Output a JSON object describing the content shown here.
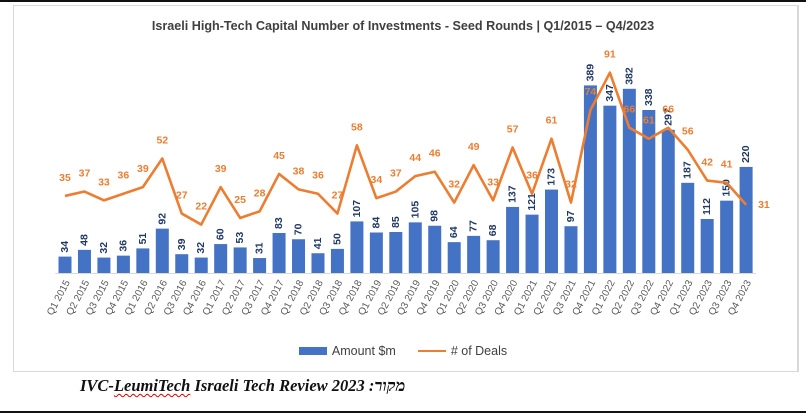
{
  "chart_data": {
    "type": "bar",
    "title": "Israeli High-Tech Capital Number of Investments - Seed Rounds | Q1/2015 – Q4/2023",
    "xlabel": "",
    "ylabel": "",
    "grid": false,
    "legend_position": "bottom",
    "categories": [
      "Q1 2015",
      "Q2 2015",
      "Q3 2015",
      "Q4 2015",
      "Q1 2016",
      "Q2 2016",
      "Q3 2016",
      "Q4 2016",
      "Q1 2017",
      "Q2 2017",
      "Q3 2017",
      "Q4 2017",
      "Q1 2018",
      "Q2 2018",
      "Q3 2018",
      "Q4 2018",
      "Q1 2019",
      "Q2 2019",
      "Q3 2019",
      "Q4 2019",
      "Q1 2020",
      "Q2 2020",
      "Q3 2020",
      "Q4 2020",
      "Q1 2021",
      "Q2 2021",
      "Q3 2021",
      "Q4 2021",
      "Q1 2022",
      "Q2 2022",
      "Q3 2022",
      "Q4 2022",
      "Q1 2023",
      "Q2 2023",
      "Q3 2023",
      "Q4 2023"
    ],
    "series": [
      {
        "name": "Amount $m",
        "type": "bar",
        "color": "#4472C4",
        "label_color": "#203864",
        "values": [
          34,
          48,
          32,
          36,
          51,
          92,
          39,
          32,
          60,
          53,
          31,
          83,
          70,
          41,
          50,
          107,
          84,
          85,
          105,
          98,
          64,
          77,
          68,
          137,
          121,
          173,
          97,
          389,
          347,
          382,
          338,
          297,
          187,
          112,
          150,
          220
        ]
      },
      {
        "name": "# of Deals",
        "type": "line",
        "color": "#ED7D31",
        "label_color": "#ED7D31",
        "values": [
          35,
          37,
          33,
          36,
          39,
          52,
          27,
          22,
          39,
          25,
          28,
          45,
          38,
          36,
          27,
          58,
          34,
          37,
          44,
          46,
          32,
          49,
          33,
          57,
          36,
          61,
          32,
          74,
          91,
          66,
          61,
          66,
          56,
          42,
          41,
          31
        ]
      }
    ],
    "ylim_amount": [
      0,
      450
    ],
    "ylim_deals": [
      0,
      124
    ]
  },
  "legend": {
    "amount_label": "Amount $m",
    "deals_label": "# of Deals"
  },
  "source": {
    "prefix": "IVC-",
    "underlined": "LeumiTech",
    "rest": " Israeli Tech Review 2023 :",
    "hebrew": "מקור"
  }
}
